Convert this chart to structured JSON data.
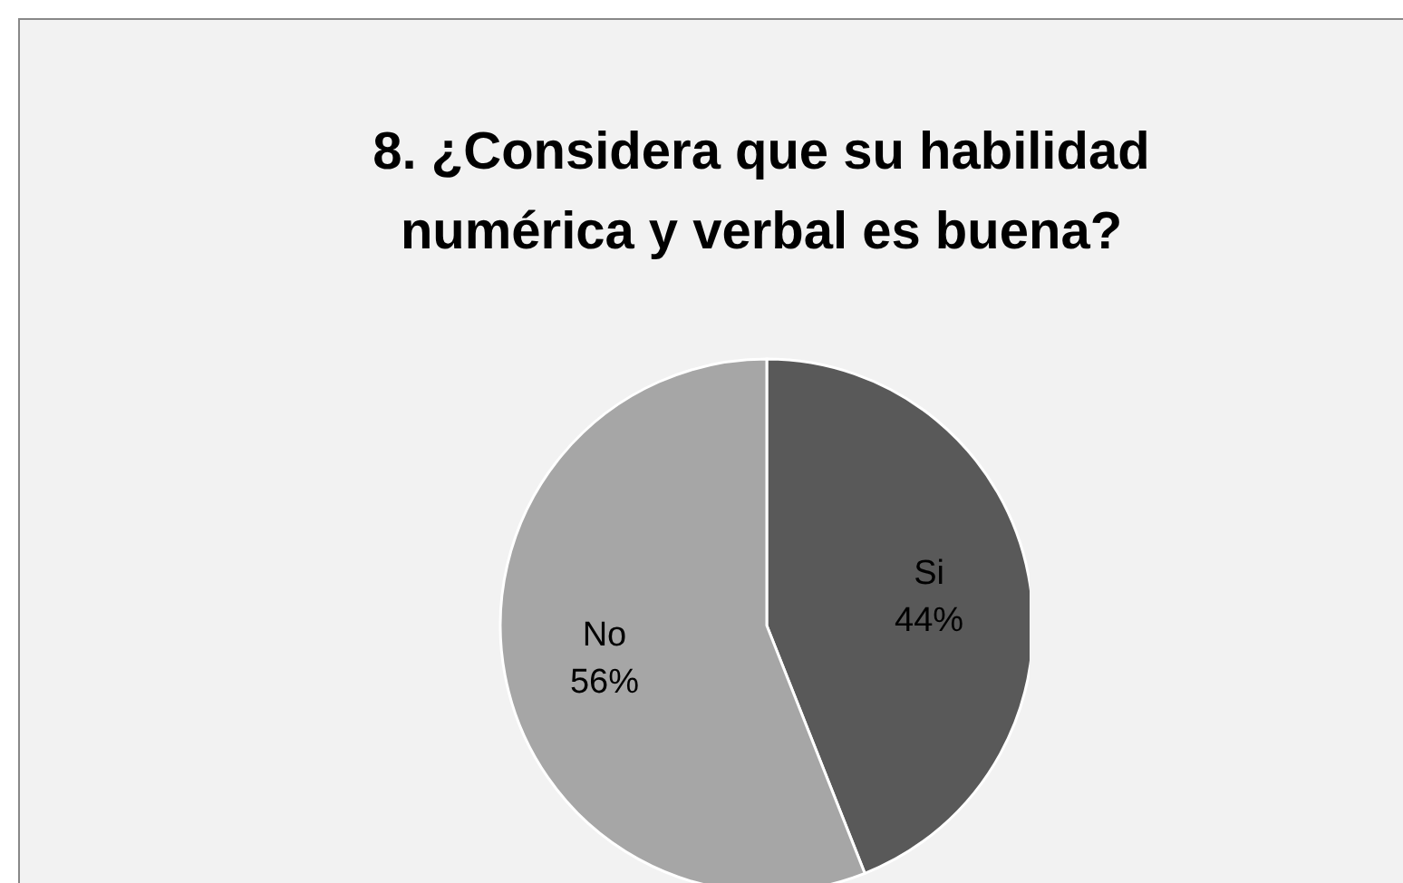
{
  "chart_data": {
    "type": "pie",
    "title": "8. ¿Considera que su habilidad numérica y verbal es buena?",
    "categories": [
      "Si",
      "No"
    ],
    "values": [
      44,
      56
    ],
    "colors": [
      "#595959",
      "#a6a6a6"
    ],
    "value_labels": [
      "44%",
      "56%"
    ],
    "legend": false
  }
}
